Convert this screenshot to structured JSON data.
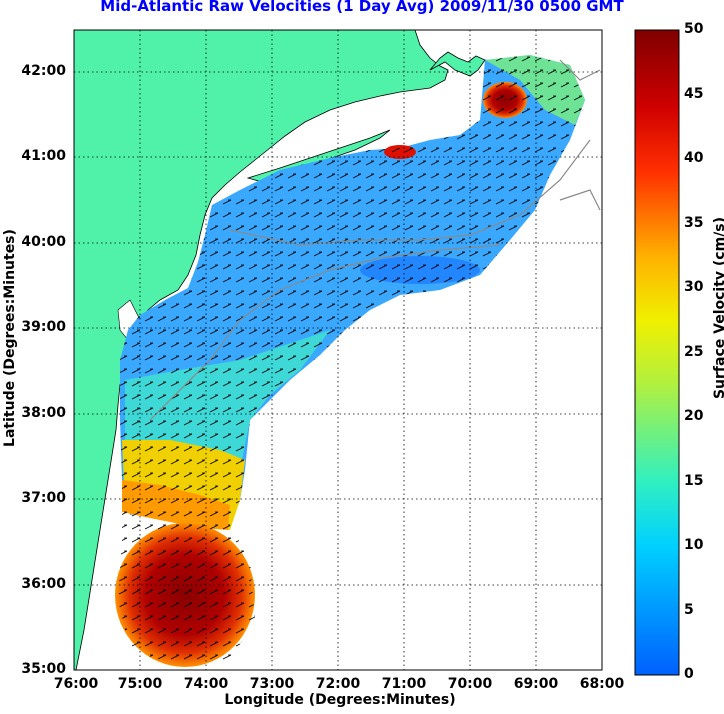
{
  "title": "Mid-Atlantic Raw Velocities (1 Day Avg) 2009/11/30 0500 GMT",
  "axes": {
    "xlabel": "Longitude (Degrees:Minutes)",
    "ylabel": "Latitude (Degrees:Minutes)",
    "x_ticks": [
      "76:00",
      "75:00",
      "74:00",
      "73:00",
      "72:00",
      "71:00",
      "70:00",
      "69:00",
      "68:00"
    ],
    "y_ticks": [
      "42:00",
      "41:00",
      "40:00",
      "39:00",
      "38:00",
      "37:00",
      "36:00",
      "35:00"
    ]
  },
  "colorbar": {
    "label": "Surface Velocity (cm/s)",
    "ticks": [
      "50",
      "45",
      "40",
      "35",
      "30",
      "25",
      "20",
      "15",
      "10",
      "5",
      "0"
    ],
    "range": [
      0,
      50
    ]
  },
  "colors": {
    "land": "#4ff2a8",
    "water": "#ffffff",
    "low": "#0050ff",
    "high": "#800000"
  }
}
